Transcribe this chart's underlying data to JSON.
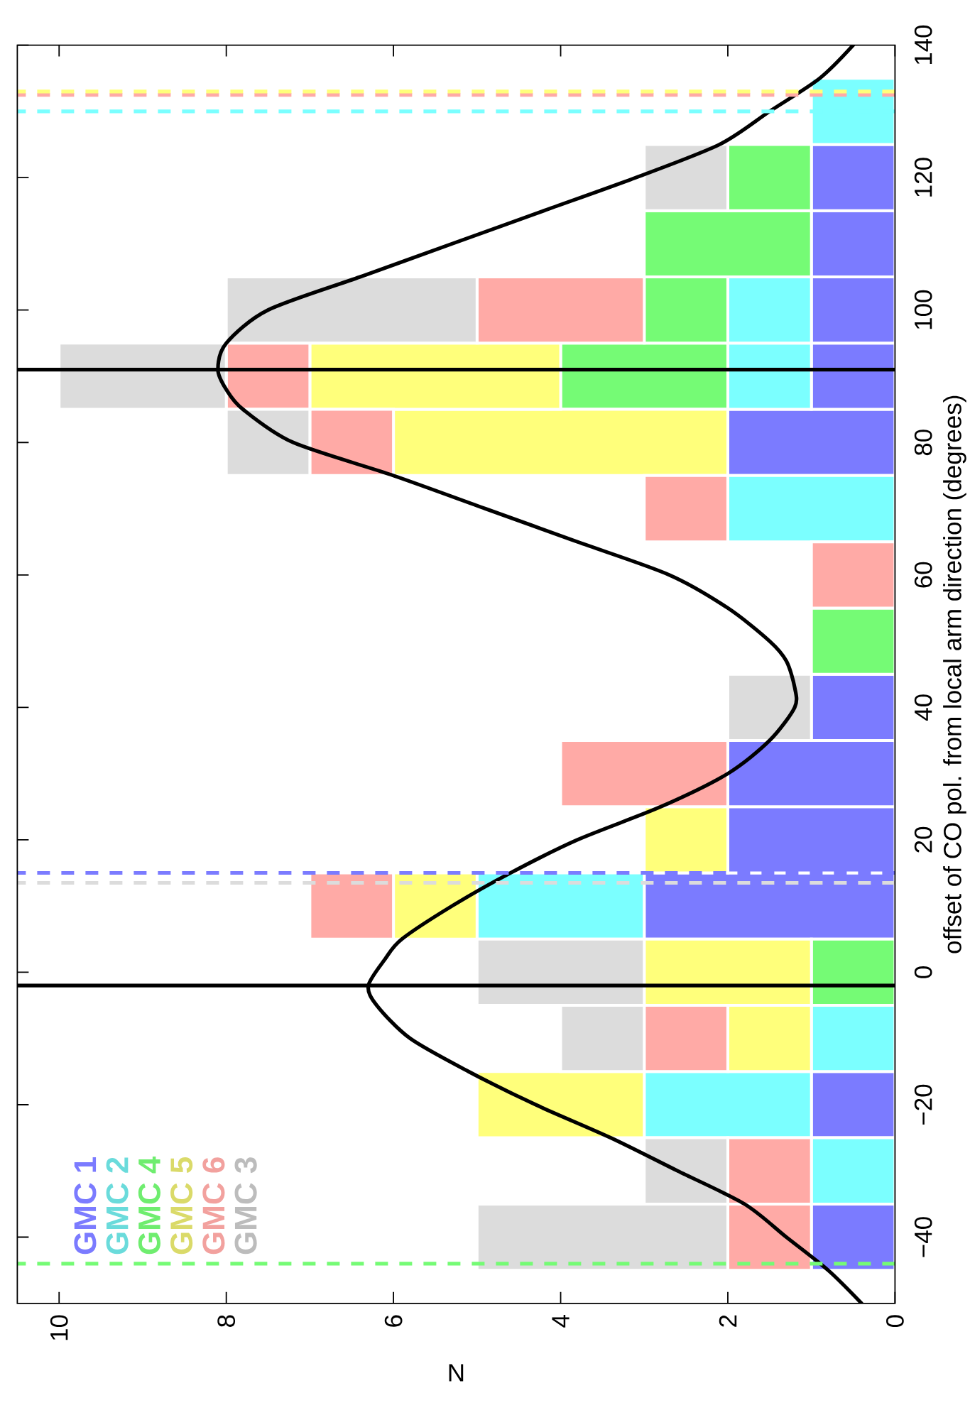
{
  "chart_data": {
    "type": "bar",
    "orientation": "horizontal",
    "stacked": true,
    "xlabel": "N",
    "ylabel": "offset of CO pol. from local arm direction (degrees)",
    "x": [
      -40,
      -30,
      -20,
      -10,
      0,
      10,
      20,
      30,
      40,
      50,
      60,
      70,
      80,
      90,
      100,
      110,
      120,
      130
    ],
    "series": [
      {
        "name": "GMC 1",
        "color": "#7b7bff",
        "values": [
          1,
          0,
          1,
          0,
          0,
          3,
          2,
          2,
          1,
          0,
          0,
          0,
          2,
          1,
          1,
          1,
          1,
          0
        ]
      },
      {
        "name": "GMC 2",
        "color": "#7bffff",
        "values": [
          0,
          1,
          2,
          1,
          0,
          2,
          0,
          0,
          0,
          0,
          0,
          2,
          0,
          1,
          1,
          0,
          0,
          1
        ]
      },
      {
        "name": "GMC 4",
        "color": "#75fb75",
        "values": [
          0,
          0,
          0,
          0,
          1,
          0,
          0,
          0,
          0,
          1,
          0,
          0,
          0,
          2,
          1,
          2,
          1,
          0
        ]
      },
      {
        "name": "GMC 5",
        "color": "#ffff7b",
        "values": [
          0,
          0,
          2,
          1,
          2,
          1,
          1,
          0,
          0,
          0,
          0,
          0,
          4,
          3,
          0,
          0,
          0,
          0
        ]
      },
      {
        "name": "GMC 6",
        "color": "#ffaaa6",
        "values": [
          1,
          1,
          0,
          1,
          0,
          1,
          0,
          2,
          0,
          0,
          1,
          1,
          1,
          1,
          2,
          0,
          0,
          0
        ]
      },
      {
        "name": "GMC 3",
        "color": "#dcdcdc",
        "values": [
          3,
          1,
          0,
          1,
          2,
          0,
          0,
          0,
          1,
          0,
          0,
          0,
          1,
          2,
          3,
          0,
          1,
          0
        ]
      },
      {
        "type": "line",
        "color": "#000000",
        "x": [
          -50,
          -45,
          -40,
          -35,
          -30,
          -25,
          -20,
          -15,
          -10,
          -5,
          -2,
          2,
          5,
          10,
          15,
          20,
          25,
          30,
          35,
          40,
          43,
          47,
          50,
          55,
          60,
          65,
          70,
          75,
          80,
          85,
          88,
          91,
          95,
          100,
          105,
          110,
          115,
          120,
          125,
          130,
          135,
          140
        ],
        "values": [
          0.4,
          0.8,
          1.3,
          1.8,
          2.6,
          3.4,
          4.3,
          5.1,
          5.8,
          6.2,
          6.3,
          6.1,
          5.9,
          5.3,
          4.6,
          3.8,
          2.8,
          2.0,
          1.5,
          1.2,
          1.2,
          1.3,
          1.5,
          2.0,
          2.7,
          3.8,
          4.9,
          6.0,
          7.2,
          7.8,
          8.0,
          8.1,
          8.0,
          7.5,
          6.4,
          5.3,
          4.2,
          3.1,
          2.1,
          1.5,
          0.9,
          0.5
        ]
      }
    ],
    "xlim": [
      10.5,
      0
    ],
    "ylim": [
      -50,
      140
    ],
    "xticks": [
      0,
      2,
      4,
      6,
      8,
      10
    ],
    "yticks": [
      {
        "value": -40,
        "label": "−40"
      },
      {
        "value": -20,
        "label": "−20"
      },
      0,
      20,
      40,
      60,
      80,
      100,
      120,
      140
    ],
    "ref_lines": [
      {
        "axis": "y",
        "value": -44,
        "color": "#75fb75",
        "line_style": "dashed"
      },
      {
        "axis": "y",
        "value": 13.5,
        "color": "#dcdcdc",
        "line_style": "dashed"
      },
      {
        "axis": "y",
        "value": 15,
        "color": "#7b7bff",
        "line_style": "dashed"
      },
      {
        "axis": "y",
        "value": 130,
        "color": "#7bffff",
        "line_style": "dashed"
      },
      {
        "axis": "y",
        "value": 132.5,
        "color": "#ffaaa6",
        "line_style": "dashed"
      },
      {
        "axis": "y",
        "value": 133,
        "color": "#ffff7b",
        "line_style": "dashed"
      },
      {
        "axis": "y",
        "value": -2,
        "color": "#000000",
        "line_style": "solid"
      },
      {
        "axis": "y",
        "value": 91,
        "color": "#000000",
        "line_style": "solid"
      }
    ],
    "legend": "bottom left"
  }
}
